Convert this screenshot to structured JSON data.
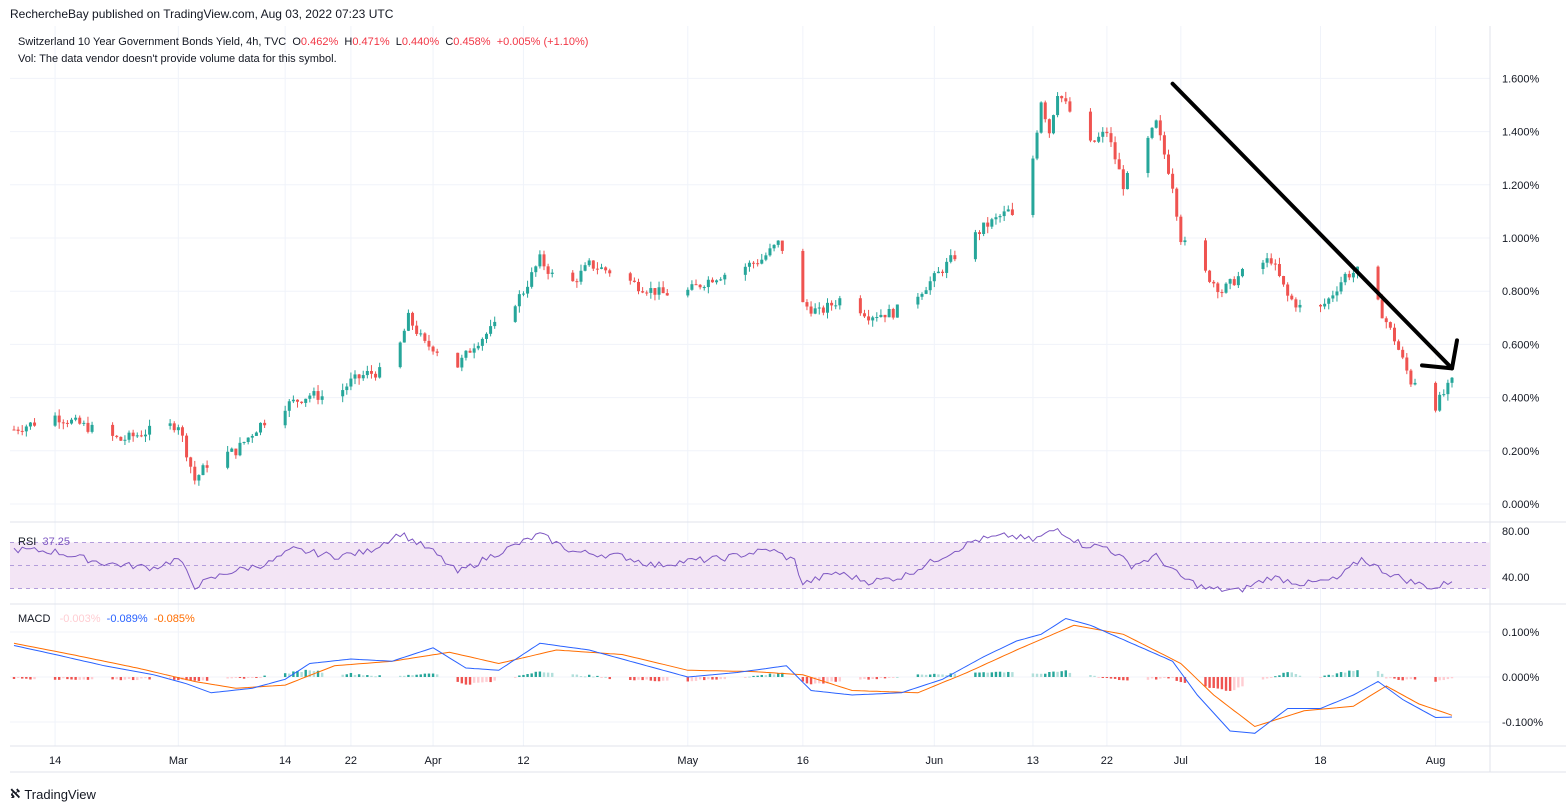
{
  "header": {
    "published": "RechercheBay published on TradingView.com, Aug 03, 2022 07:23 UTC"
  },
  "legend": {
    "symbol": "Switzerland 10 Year Government Bonds Yield, 4h, TVC",
    "o_label": "O",
    "o_value": "0.462%",
    "h_label": "H",
    "h_value": "0.471%",
    "l_label": "L",
    "l_value": "0.440%",
    "c_label": "C",
    "c_value": "0.458%",
    "change": "+0.005% (+1.10%)",
    "vol_note": "Vol: The data vendor doesn't provide volume data for this symbol."
  },
  "rsi_legend": {
    "name": "RSI",
    "value": "37.25"
  },
  "macd_legend": {
    "name": "MACD",
    "hist": "-0.003%",
    "macd": "-0.089%",
    "signal": "-0.085%"
  },
  "footer": {
    "brand": "TradingView"
  },
  "colors": {
    "up": "#26a69a",
    "down": "#ef5350",
    "rsi_line": "#7e57c2",
    "rsi_band": "#f3e5f5",
    "macd_line": "#2962ff",
    "signal_line": "#ff6d00",
    "hist_up": "#26a69a",
    "hist_down": "#ef5350",
    "hist_up_fade": "#b2dfdb",
    "hist_down_fade": "#ffcdd2",
    "grid": "#f0f3fa"
  },
  "chart_data": {
    "type": "candlestick",
    "price_axis": {
      "ticks": [
        "1.600%",
        "1.400%",
        "1.200%",
        "1.000%",
        "0.800%",
        "0.600%",
        "0.400%",
        "0.200%",
        "0.000%"
      ],
      "values": [
        1.6,
        1.4,
        1.2,
        1.0,
        0.8,
        0.6,
        0.4,
        0.2,
        0.0
      ],
      "range": [
        -0.05,
        1.75
      ]
    },
    "rsi_axis": {
      "ticks": [
        "80.00",
        "40.00"
      ],
      "values": [
        80,
        40
      ],
      "band": [
        30,
        70
      ]
    },
    "macd_axis": {
      "ticks": [
        "0.100%",
        "0.000%",
        "-0.100%"
      ],
      "values": [
        0.1,
        0.0,
        -0.1
      ]
    },
    "time_axis": {
      "labels": [
        "14",
        "Mar",
        "14",
        "22",
        "Apr",
        "12",
        "May",
        "16",
        "Jun",
        "13",
        "22",
        "Jul",
        "18",
        "Aug"
      ],
      "dates": [
        "2022-02-14",
        "2022-03-01",
        "2022-03-14",
        "2022-03-22",
        "2022-04-01",
        "2022-04-12",
        "2022-05-02",
        "2022-05-16",
        "2022-06-01",
        "2022-06-13",
        "2022-06-22",
        "2022-07-01",
        "2022-07-18",
        "2022-08-01"
      ]
    },
    "start_date": "2022-02-09",
    "end_date": "2022-08-03",
    "price_path": [
      [
        "2022-02-09",
        0.28
      ],
      [
        "2022-02-12",
        0.31
      ],
      [
        "2022-02-14",
        0.33
      ],
      [
        "2022-02-17",
        0.3
      ],
      [
        "2022-02-22",
        0.24
      ],
      [
        "2022-02-26",
        0.28
      ],
      [
        "2022-03-01",
        0.3
      ],
      [
        "2022-03-03",
        0.09
      ],
      [
        "2022-03-05",
        0.17
      ],
      [
        "2022-03-08",
        0.2
      ],
      [
        "2022-03-11",
        0.3
      ],
      [
        "2022-03-14",
        0.37
      ],
      [
        "2022-03-17",
        0.41
      ],
      [
        "2022-03-20",
        0.4
      ],
      [
        "2022-03-22",
        0.46
      ],
      [
        "2022-03-24",
        0.49
      ],
      [
        "2022-03-27",
        0.5
      ],
      [
        "2022-03-29",
        0.7
      ],
      [
        "2022-03-31",
        0.6
      ],
      [
        "2022-04-01",
        0.59
      ],
      [
        "2022-04-04",
        0.52
      ],
      [
        "2022-04-06",
        0.6
      ],
      [
        "2022-04-09",
        0.68
      ],
      [
        "2022-04-12",
        0.8
      ],
      [
        "2022-04-14",
        0.92
      ],
      [
        "2022-04-17",
        0.8
      ],
      [
        "2022-04-20",
        0.9
      ],
      [
        "2022-04-23",
        0.87
      ],
      [
        "2022-04-26",
        0.82
      ],
      [
        "2022-04-29",
        0.79
      ],
      [
        "2022-05-02",
        0.8
      ],
      [
        "2022-05-05",
        0.85
      ],
      [
        "2022-05-08",
        0.88
      ],
      [
        "2022-05-11",
        0.92
      ],
      [
        "2022-05-13",
        0.98
      ],
      [
        "2022-05-15",
        0.9
      ],
      [
        "2022-05-16",
        0.75
      ],
      [
        "2022-05-18",
        0.72
      ],
      [
        "2022-05-21",
        0.78
      ],
      [
        "2022-05-24",
        0.71
      ],
      [
        "2022-05-27",
        0.72
      ],
      [
        "2022-05-29",
        0.76
      ],
      [
        "2022-06-01",
        0.85
      ],
      [
        "2022-06-04",
        0.95
      ],
      [
        "2022-06-07",
        1.04
      ],
      [
        "2022-06-10",
        1.1
      ],
      [
        "2022-06-11",
        1.05
      ],
      [
        "2022-06-13",
        1.3
      ],
      [
        "2022-06-14",
        1.52
      ],
      [
        "2022-06-15",
        1.4
      ],
      [
        "2022-06-16",
        1.55
      ],
      [
        "2022-06-18",
        1.45
      ],
      [
        "2022-06-20",
        1.35
      ],
      [
        "2022-06-22",
        1.4
      ],
      [
        "2022-06-24",
        1.2
      ],
      [
        "2022-06-26",
        1.3
      ],
      [
        "2022-06-28",
        1.43
      ],
      [
        "2022-06-30",
        1.2
      ],
      [
        "2022-07-01",
        1.0
      ],
      [
        "2022-07-03",
        0.9
      ],
      [
        "2022-07-06",
        0.8
      ],
      [
        "2022-07-09",
        0.88
      ],
      [
        "2022-07-12",
        0.92
      ],
      [
        "2022-07-14",
        0.78
      ],
      [
        "2022-07-17",
        0.7
      ],
      [
        "2022-07-19",
        0.77
      ],
      [
        "2022-07-21",
        0.86
      ],
      [
        "2022-07-23",
        0.88
      ],
      [
        "2022-07-25",
        0.75
      ],
      [
        "2022-07-27",
        0.62
      ],
      [
        "2022-07-29",
        0.46
      ],
      [
        "2022-07-31",
        0.48
      ],
      [
        "2022-08-01",
        0.37
      ],
      [
        "2022-08-03",
        0.458
      ]
    ],
    "rsi_path": [
      [
        "2022-02-09",
        64
      ],
      [
        "2022-02-14",
        62
      ],
      [
        "2022-02-20",
        52
      ],
      [
        "2022-02-26",
        48
      ],
      [
        "2022-03-01",
        56
      ],
      [
        "2022-03-03",
        32
      ],
      [
        "2022-03-07",
        44
      ],
      [
        "2022-03-12",
        52
      ],
      [
        "2022-03-15",
        64
      ],
      [
        "2022-03-20",
        58
      ],
      [
        "2022-03-24",
        62
      ],
      [
        "2022-03-28",
        78
      ],
      [
        "2022-04-01",
        62
      ],
      [
        "2022-04-04",
        44
      ],
      [
        "2022-04-08",
        58
      ],
      [
        "2022-04-14",
        77
      ],
      [
        "2022-04-18",
        62
      ],
      [
        "2022-04-24",
        58
      ],
      [
        "2022-04-28",
        50
      ],
      [
        "2022-05-02",
        54
      ],
      [
        "2022-05-06",
        56
      ],
      [
        "2022-05-12",
        64
      ],
      [
        "2022-05-15",
        54
      ],
      [
        "2022-05-16",
        34
      ],
      [
        "2022-05-20",
        44
      ],
      [
        "2022-05-24",
        36
      ],
      [
        "2022-05-28",
        40
      ],
      [
        "2022-06-02",
        58
      ],
      [
        "2022-06-06",
        72
      ],
      [
        "2022-06-10",
        76
      ],
      [
        "2022-06-13",
        72
      ],
      [
        "2022-06-16",
        82
      ],
      [
        "2022-06-19",
        68
      ],
      [
        "2022-06-22",
        66
      ],
      [
        "2022-06-25",
        50
      ],
      [
        "2022-06-28",
        58
      ],
      [
        "2022-07-01",
        40
      ],
      [
        "2022-07-04",
        30
      ],
      [
        "2022-07-08",
        28
      ],
      [
        "2022-07-12",
        40
      ],
      [
        "2022-07-16",
        34
      ],
      [
        "2022-07-20",
        38
      ],
      [
        "2022-07-23",
        56
      ],
      [
        "2022-07-26",
        44
      ],
      [
        "2022-07-29",
        36
      ],
      [
        "2022-08-01",
        30
      ],
      [
        "2022-08-03",
        37.25
      ]
    ],
    "macd_path": [
      [
        "2022-02-09",
        0.07
      ],
      [
        "2022-02-14",
        0.05
      ],
      [
        "2022-02-20",
        0.025
      ],
      [
        "2022-02-26",
        0.005
      ],
      [
        "2022-03-02",
        -0.015
      ],
      [
        "2022-03-05",
        -0.035
      ],
      [
        "2022-03-10",
        -0.025
      ],
      [
        "2022-03-14",
        -0.005
      ],
      [
        "2022-03-17",
        0.03
      ],
      [
        "2022-03-22",
        0.04
      ],
      [
        "2022-03-27",
        0.035
      ],
      [
        "2022-04-01",
        0.065
      ],
      [
        "2022-04-05",
        0.02
      ],
      [
        "2022-04-09",
        0.015
      ],
      [
        "2022-04-14",
        0.075
      ],
      [
        "2022-04-20",
        0.06
      ],
      [
        "2022-04-26",
        0.03
      ],
      [
        "2022-05-02",
        0.0
      ],
      [
        "2022-05-08",
        0.01
      ],
      [
        "2022-05-14",
        0.025
      ],
      [
        "2022-05-17",
        -0.03
      ],
      [
        "2022-05-22",
        -0.04
      ],
      [
        "2022-05-28",
        -0.035
      ],
      [
        "2022-06-02",
        -0.005
      ],
      [
        "2022-06-07",
        0.045
      ],
      [
        "2022-06-11",
        0.08
      ],
      [
        "2022-06-14",
        0.095
      ],
      [
        "2022-06-17",
        0.13
      ],
      [
        "2022-06-20",
        0.115
      ],
      [
        "2022-06-25",
        0.075
      ],
      [
        "2022-06-30",
        0.035
      ],
      [
        "2022-07-03",
        -0.04
      ],
      [
        "2022-07-07",
        -0.12
      ],
      [
        "2022-07-10",
        -0.125
      ],
      [
        "2022-07-14",
        -0.07
      ],
      [
        "2022-07-18",
        -0.07
      ],
      [
        "2022-07-22",
        -0.04
      ],
      [
        "2022-07-25",
        -0.01
      ],
      [
        "2022-07-28",
        -0.05
      ],
      [
        "2022-08-01",
        -0.09
      ],
      [
        "2022-08-03",
        -0.089
      ]
    ],
    "signal_path": [
      [
        "2022-02-09",
        0.075
      ],
      [
        "2022-02-16",
        0.05
      ],
      [
        "2022-02-24",
        0.02
      ],
      [
        "2022-03-03",
        -0.01
      ],
      [
        "2022-03-08",
        -0.025
      ],
      [
        "2022-03-14",
        -0.018
      ],
      [
        "2022-03-20",
        0.025
      ],
      [
        "2022-03-27",
        0.035
      ],
      [
        "2022-04-03",
        0.055
      ],
      [
        "2022-04-09",
        0.03
      ],
      [
        "2022-04-16",
        0.06
      ],
      [
        "2022-04-24",
        0.05
      ],
      [
        "2022-05-02",
        0.015
      ],
      [
        "2022-05-10",
        0.012
      ],
      [
        "2022-05-16",
        0.005
      ],
      [
        "2022-05-22",
        -0.03
      ],
      [
        "2022-05-30",
        -0.035
      ],
      [
        "2022-06-05",
        0.01
      ],
      [
        "2022-06-11",
        0.06
      ],
      [
        "2022-06-18",
        0.115
      ],
      [
        "2022-06-24",
        0.095
      ],
      [
        "2022-07-01",
        0.03
      ],
      [
        "2022-07-05",
        -0.04
      ],
      [
        "2022-07-10",
        -0.11
      ],
      [
        "2022-07-16",
        -0.075
      ],
      [
        "2022-07-22",
        -0.065
      ],
      [
        "2022-07-26",
        -0.02
      ],
      [
        "2022-07-30",
        -0.06
      ],
      [
        "2022-08-03",
        -0.085
      ]
    ],
    "annotation": {
      "type": "arrow",
      "from": [
        "2022-06-30",
        1.58
      ],
      "to": [
        "2022-08-03",
        0.51
      ],
      "color": "#000000"
    }
  }
}
